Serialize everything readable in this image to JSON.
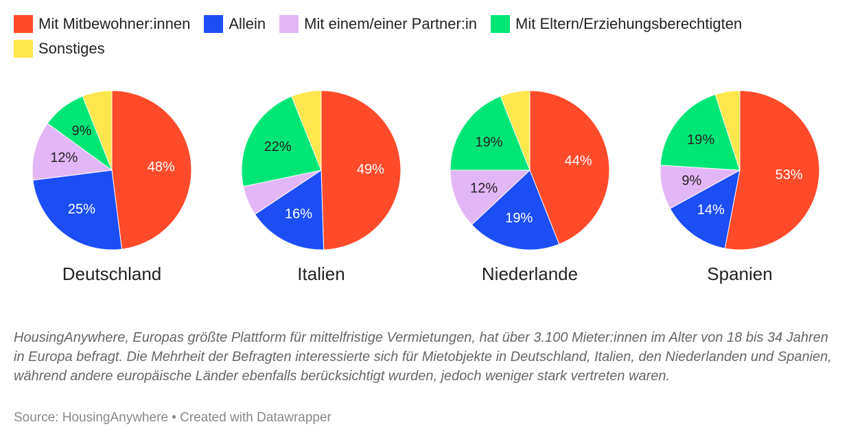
{
  "legend": [
    {
      "label": "Mit Mitbewohner:innen",
      "color": "#ff4b2a"
    },
    {
      "label": "Allein",
      "color": "#1d4ef5"
    },
    {
      "label": "Mit einem/einer Partner:in",
      "color": "#e2b7f7"
    },
    {
      "label": "Mit Eltern/Erziehungsberechtigten",
      "color": "#00e676"
    },
    {
      "label": "Sonstiges",
      "color": "#fde74c"
    }
  ],
  "chart_data": [
    {
      "type": "pie",
      "title": "Deutschland",
      "slices": [
        {
          "label": "Mit Mitbewohner:innen",
          "value": 48,
          "display": "48%"
        },
        {
          "label": "Allein",
          "value": 25,
          "display": "25%"
        },
        {
          "label": "Mit einem/einer Partner:in",
          "value": 12,
          "display": "12%"
        },
        {
          "label": "Mit Eltern/Erziehungsberechtigten",
          "value": 9,
          "display": "9%"
        },
        {
          "label": "Sonstiges",
          "value": 6,
          "display": ""
        }
      ]
    },
    {
      "type": "pie",
      "title": "Italien",
      "slices": [
        {
          "label": "Mit Mitbewohner:innen",
          "value": 49,
          "display": "49%"
        },
        {
          "label": "Allein",
          "value": 16,
          "display": "16%"
        },
        {
          "label": "Mit einem/einer Partner:in",
          "value": 6,
          "display": ""
        },
        {
          "label": "Mit Eltern/Erziehungsberechtigten",
          "value": 22,
          "display": "22%"
        },
        {
          "label": "Sonstiges",
          "value": 6,
          "display": ""
        }
      ]
    },
    {
      "type": "pie",
      "title": "Niederlande",
      "slices": [
        {
          "label": "Mit Mitbewohner:innen",
          "value": 44,
          "display": "44%"
        },
        {
          "label": "Allein",
          "value": 19,
          "display": "19%"
        },
        {
          "label": "Mit einem/einer Partner:in",
          "value": 12,
          "display": "12%"
        },
        {
          "label": "Mit Eltern/Erziehungsberechtigten",
          "value": 19,
          "display": "19%"
        },
        {
          "label": "Sonstiges",
          "value": 6,
          "display": ""
        }
      ]
    },
    {
      "type": "pie",
      "title": "Spanien",
      "slices": [
        {
          "label": "Mit Mitbewohner:innen",
          "value": 53,
          "display": "53%"
        },
        {
          "label": "Allein",
          "value": 14,
          "display": "14%"
        },
        {
          "label": "Mit einem/einer Partner:in",
          "value": 9,
          "display": "9%"
        },
        {
          "label": "Mit Eltern/Erziehungsberechtigten",
          "value": 19,
          "display": "19%"
        },
        {
          "label": "Sonstiges",
          "value": 5,
          "display": ""
        }
      ]
    }
  ],
  "note": "HousingAnywhere, Europas größte Plattform für mittelfristige Vermietungen, hat über 3.100 Mieter:innen im Alter von 18 bis 34 Jahren in Europa befragt. Die Mehrheit der Befragten interessierte sich für Mietobjekte in Deutschland, Italien, den Niederlanden und Spanien, während andere europäische Länder ebenfalls berücksichtigt wurden, jedoch weniger stark vertreten waren.",
  "source": "Source: HousingAnywhere • Created with Datawrapper"
}
